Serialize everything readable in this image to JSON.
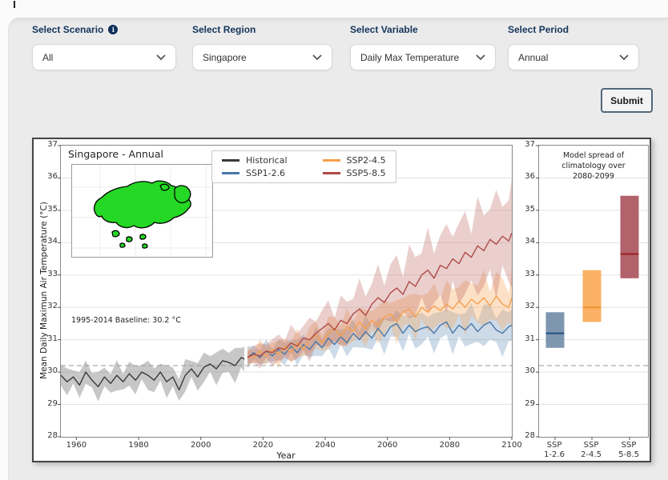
{
  "controls": [
    {
      "label": "Select Scenario",
      "value": "All",
      "has_info_icon": true
    },
    {
      "label": "Select Region",
      "value": "Singapore",
      "has_info_icon": false
    },
    {
      "label": "Select Variable",
      "value": "Daily Max Temperature",
      "has_info_icon": false
    },
    {
      "label": "Select Period",
      "value": "Annual",
      "has_info_icon": false
    }
  ],
  "submit_label": "Submit",
  "info_icon_glyph": "i",
  "map_inset": {
    "region": "Singapore",
    "fill": "#25d825",
    "outline": "#000000"
  },
  "chart_data": [
    {
      "type": "line",
      "title": "Singapore - Annual",
      "xlabel": "Year",
      "ylabel": "Mean Daily Maximun Air Temperature (°C)",
      "xlim": [
        1955,
        2100
      ],
      "ylim": [
        28,
        37
      ],
      "xticks": [
        1960,
        1980,
        2000,
        2020,
        2040,
        2060,
        2080,
        2100
      ],
      "yticks": [
        28,
        29,
        30,
        31,
        32,
        33,
        34,
        35,
        36,
        37
      ],
      "grid": true,
      "legend_position": "top-center",
      "baseline": {
        "label": "1995-2014 Baseline: 30.2 °C",
        "value": 30.2
      },
      "series": [
        {
          "name": "Historical",
          "color": "#3a3a3a",
          "band_color": "rgba(130,130,130,0.45)",
          "band": [
            0.32,
            0.4
          ],
          "x": [
            1955,
            1957,
            1959,
            1961,
            1963,
            1965,
            1967,
            1969,
            1971,
            1973,
            1975,
            1977,
            1979,
            1981,
            1983,
            1985,
            1987,
            1989,
            1991,
            1993,
            1995,
            1997,
            1999,
            2001,
            2003,
            2005,
            2007,
            2009,
            2011,
            2013,
            2014
          ],
          "y": [
            29.9,
            29.7,
            29.85,
            29.6,
            30.0,
            29.75,
            29.55,
            29.85,
            29.65,
            29.9,
            29.7,
            29.95,
            29.75,
            30.0,
            29.9,
            29.75,
            30.0,
            29.7,
            29.85,
            29.45,
            29.9,
            30.1,
            29.85,
            30.15,
            30.25,
            30.1,
            30.35,
            30.3,
            30.2,
            30.45,
            30.4
          ]
        },
        {
          "name": "SSP1-2.6",
          "color": "#4a77a8",
          "band_color": "rgba(100,140,180,0.32)",
          "band": [
            0.25,
            0.55
          ],
          "x": [
            2015,
            2017,
            2019,
            2021,
            2023,
            2025,
            2027,
            2029,
            2031,
            2033,
            2035,
            2037,
            2039,
            2041,
            2043,
            2045,
            2047,
            2049,
            2051,
            2053,
            2055,
            2057,
            2059,
            2061,
            2063,
            2065,
            2067,
            2069,
            2071,
            2073,
            2075,
            2077,
            2079,
            2081,
            2083,
            2085,
            2087,
            2089,
            2091,
            2093,
            2095,
            2097,
            2099,
            2100
          ],
          "y": [
            30.45,
            30.6,
            30.45,
            30.65,
            30.5,
            30.7,
            30.55,
            30.8,
            30.6,
            30.85,
            30.7,
            30.95,
            30.75,
            31.05,
            30.85,
            31.1,
            30.9,
            31.2,
            31.0,
            31.25,
            31.05,
            31.35,
            31.1,
            31.4,
            31.5,
            31.2,
            31.45,
            31.25,
            31.35,
            31.4,
            31.2,
            31.45,
            31.55,
            31.2,
            31.45,
            31.3,
            31.5,
            31.25,
            31.45,
            31.55,
            31.3,
            31.2,
            31.4,
            31.45
          ]
        },
        {
          "name": "SSP2-4.5",
          "color": "#f5a04c",
          "band_color": "rgba(248,170,95,0.35)",
          "band": [
            0.25,
            0.7
          ],
          "x": [
            2015,
            2017,
            2019,
            2021,
            2023,
            2025,
            2027,
            2029,
            2031,
            2033,
            2035,
            2037,
            2039,
            2041,
            2043,
            2045,
            2047,
            2049,
            2051,
            2053,
            2055,
            2057,
            2059,
            2061,
            2063,
            2065,
            2067,
            2069,
            2071,
            2073,
            2075,
            2077,
            2079,
            2081,
            2083,
            2085,
            2087,
            2089,
            2091,
            2093,
            2095,
            2097,
            2099,
            2100
          ],
          "y": [
            30.5,
            30.45,
            30.65,
            30.5,
            30.7,
            30.55,
            30.8,
            30.6,
            30.9,
            30.7,
            31.0,
            31.15,
            30.9,
            31.2,
            31.35,
            31.1,
            31.4,
            31.25,
            31.55,
            31.35,
            31.6,
            31.45,
            31.7,
            31.8,
            31.55,
            31.85,
            31.95,
            31.7,
            32.0,
            31.85,
            32.05,
            31.9,
            32.1,
            31.95,
            32.2,
            32.0,
            32.25,
            32.1,
            32.3,
            32.05,
            32.35,
            32.1,
            32.0,
            32.3
          ]
        },
        {
          "name": "SSP5-8.5",
          "color": "#ae4a46",
          "band_color": "rgba(185,95,90,0.30)",
          "band": [
            0.25,
            1.3
          ],
          "x": [
            2015,
            2017,
            2019,
            2021,
            2023,
            2025,
            2027,
            2029,
            2031,
            2033,
            2035,
            2037,
            2039,
            2041,
            2043,
            2045,
            2047,
            2049,
            2051,
            2053,
            2055,
            2057,
            2059,
            2061,
            2063,
            2065,
            2067,
            2069,
            2071,
            2073,
            2075,
            2077,
            2079,
            2081,
            2083,
            2085,
            2087,
            2089,
            2091,
            2093,
            2095,
            2097,
            2099,
            2100
          ],
          "y": [
            30.45,
            30.55,
            30.5,
            30.65,
            30.6,
            30.75,
            30.7,
            30.9,
            30.8,
            31.05,
            31.0,
            31.2,
            31.35,
            31.5,
            31.3,
            31.6,
            31.5,
            31.8,
            31.95,
            31.75,
            32.1,
            32.3,
            32.15,
            32.45,
            32.6,
            32.4,
            32.8,
            32.65,
            33.0,
            33.15,
            32.9,
            33.3,
            33.2,
            33.5,
            33.35,
            33.7,
            33.55,
            33.9,
            33.75,
            34.1,
            33.95,
            34.2,
            34.05,
            34.3
          ]
        }
      ]
    },
    {
      "type": "box",
      "title": "Model spread of\nclimatology over\n2080-2099",
      "ylim": [
        28,
        37
      ],
      "yticks": [
        28,
        29,
        30,
        31,
        32,
        33,
        34,
        35,
        36,
        37
      ],
      "baseline_value": 30.2,
      "boxes": [
        {
          "label_top": "SSP",
          "label_bottom": "1-2.6",
          "low": 30.75,
          "high": 31.85,
          "median": 31.2,
          "fill": "#7e96b0",
          "median_color": "#21517f"
        },
        {
          "label_top": "SSP",
          "label_bottom": "2-4.5",
          "low": 31.55,
          "high": 33.15,
          "median": 32.0,
          "fill": "#fab163",
          "median_color": "#f0922f"
        },
        {
          "label_top": "SSP",
          "label_bottom": "5-8.5",
          "low": 32.9,
          "high": 35.45,
          "median": 33.65,
          "fill": "#b2626b",
          "median_color": "#9c1f1f"
        }
      ]
    }
  ]
}
